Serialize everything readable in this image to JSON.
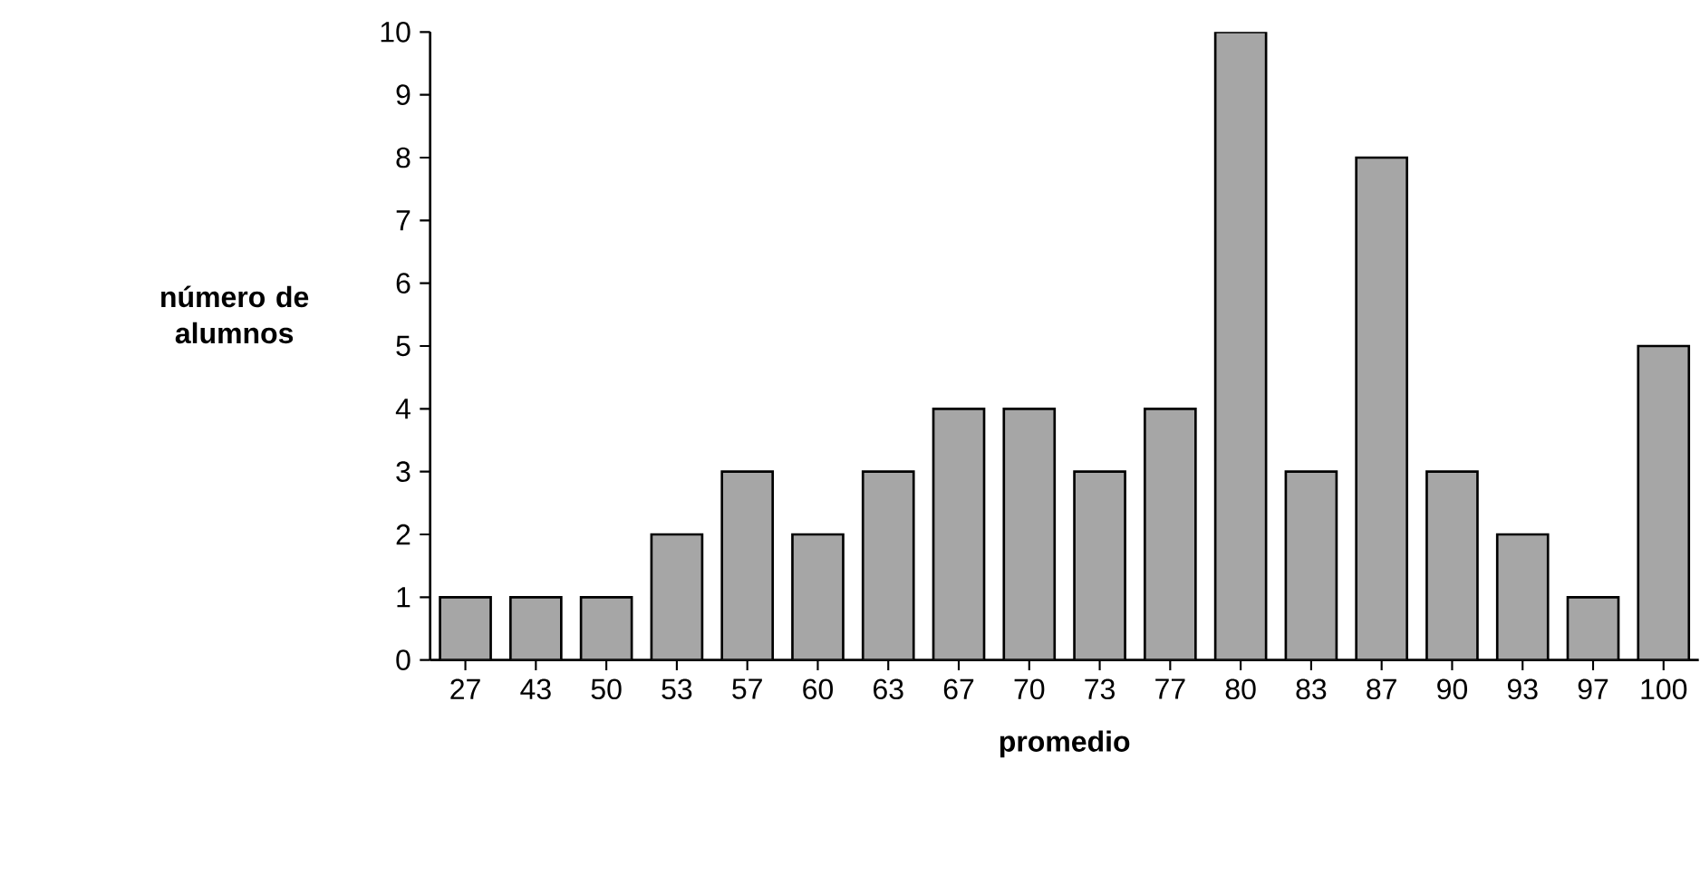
{
  "chart_data": {
    "type": "bar",
    "xlabel": "promedio",
    "ylabel": "número de alumnos",
    "categories": [
      "27",
      "43",
      "50",
      "53",
      "57",
      "60",
      "63",
      "67",
      "70",
      "73",
      "77",
      "80",
      "83",
      "87",
      "90",
      "93",
      "97",
      "100"
    ],
    "values": [
      1,
      1,
      1,
      2,
      3,
      2,
      3,
      4,
      4,
      3,
      4,
      10,
      3,
      8,
      3,
      2,
      1,
      5
    ],
    "color": "#a6a6a6",
    "ylim": [
      0,
      10
    ],
    "yticks": [
      0,
      1,
      2,
      3,
      4,
      5,
      6,
      7,
      8,
      9,
      10
    ],
    "grid": false
  }
}
